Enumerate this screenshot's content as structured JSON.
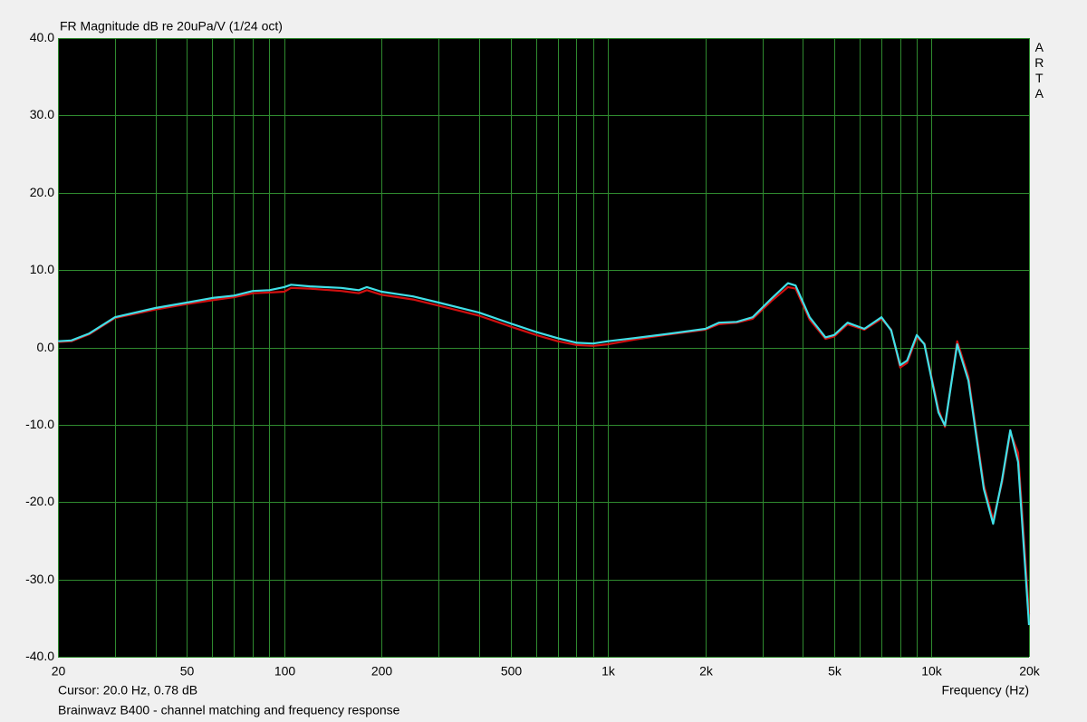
{
  "chart_data": {
    "type": "line",
    "title": "FR Magnitude dB re 20uPa/V (1/24 oct)",
    "watermark": "ARTA",
    "cursor": "Cursor: 20.0 Hz, 0.78 dB",
    "x_label": "Frequency (Hz)",
    "caption": "Brainwavz B400 - channel matching and frequency response",
    "log_x": true,
    "grid": true,
    "grid_color": "#2f8a2f",
    "background": "#000000",
    "x": [
      20,
      22,
      25,
      30,
      40,
      50,
      60,
      70,
      80,
      90,
      100,
      105,
      120,
      150,
      170,
      180,
      200,
      250,
      300,
      400,
      500,
      600,
      700,
      800,
      900,
      1000,
      1200,
      1500,
      2000,
      2200,
      2500,
      2800,
      3200,
      3600,
      3800,
      4200,
      4700,
      5000,
      5500,
      6200,
      7000,
      7500,
      8000,
      8400,
      9000,
      9500,
      10500,
      11000,
      12000,
      13000,
      14500,
      15500,
      16500,
      17500,
      18500,
      20000
    ],
    "series": [
      {
        "color": "#d01010",
        "values": [
          0.7,
          0.8,
          1.7,
          3.8,
          4.9,
          5.6,
          6.1,
          6.5,
          7.0,
          7.1,
          7.2,
          7.7,
          7.6,
          7.3,
          7.0,
          7.4,
          6.8,
          6.2,
          5.4,
          4.1,
          2.7,
          1.6,
          0.8,
          0.3,
          0.2,
          0.4,
          1.0,
          1.6,
          2.3,
          3.0,
          3.2,
          3.7,
          6.0,
          7.8,
          7.6,
          3.6,
          1.1,
          1.4,
          3.0,
          2.3,
          3.7,
          2.3,
          -2.6,
          -2.0,
          1.3,
          0.5,
          -8.0,
          -10.3,
          0.8,
          -3.8,
          -17.8,
          -22.3,
          -17.5,
          -11.0,
          -13.6,
          -34.5
        ]
      },
      {
        "color": "#40e0e8",
        "values": [
          0.8,
          0.9,
          1.8,
          3.9,
          5.1,
          5.8,
          6.4,
          6.7,
          7.3,
          7.4,
          7.8,
          8.1,
          7.9,
          7.7,
          7.4,
          7.8,
          7.2,
          6.6,
          5.8,
          4.5,
          3.1,
          2.0,
          1.2,
          0.6,
          0.5,
          0.8,
          1.2,
          1.7,
          2.4,
          3.2,
          3.3,
          3.9,
          6.3,
          8.3,
          8.0,
          3.9,
          1.3,
          1.6,
          3.2,
          2.4,
          3.9,
          2.2,
          -2.3,
          -1.7,
          1.6,
          0.4,
          -8.4,
          -10.1,
          0.4,
          -4.3,
          -18.3,
          -22.8,
          -17.2,
          -10.7,
          -14.8,
          -35.9
        ]
      }
    ],
    "xlim": [
      20,
      20000
    ],
    "xticks": [
      20,
      50,
      100,
      200,
      500,
      {
        "value": 1000,
        "label": "1k"
      },
      {
        "value": 2000,
        "label": "2k"
      },
      {
        "value": 5000,
        "label": "5k"
      },
      {
        "value": 10000,
        "label": "10k"
      },
      {
        "value": 20000,
        "label": "20k"
      }
    ],
    "xgrid": [
      30,
      40,
      60,
      70,
      80,
      90,
      300,
      400,
      600,
      700,
      800,
      900,
      3000,
      4000,
      6000,
      7000,
      8000,
      9000
    ],
    "ylim": [
      -40,
      40
    ],
    "yticks": [
      {
        "value": 40,
        "label": "40.0"
      },
      {
        "value": 30,
        "label": "30.0"
      },
      {
        "value": 20,
        "label": "20.0"
      },
      {
        "value": 10,
        "label": "10.0"
      },
      {
        "value": 0,
        "label": "0.0"
      },
      {
        "value": -10,
        "label": "-10.0"
      },
      {
        "value": -20,
        "label": "-20.0"
      },
      {
        "value": -30,
        "label": "-30.0"
      },
      {
        "value": -40,
        "label": "-40.0"
      }
    ]
  }
}
